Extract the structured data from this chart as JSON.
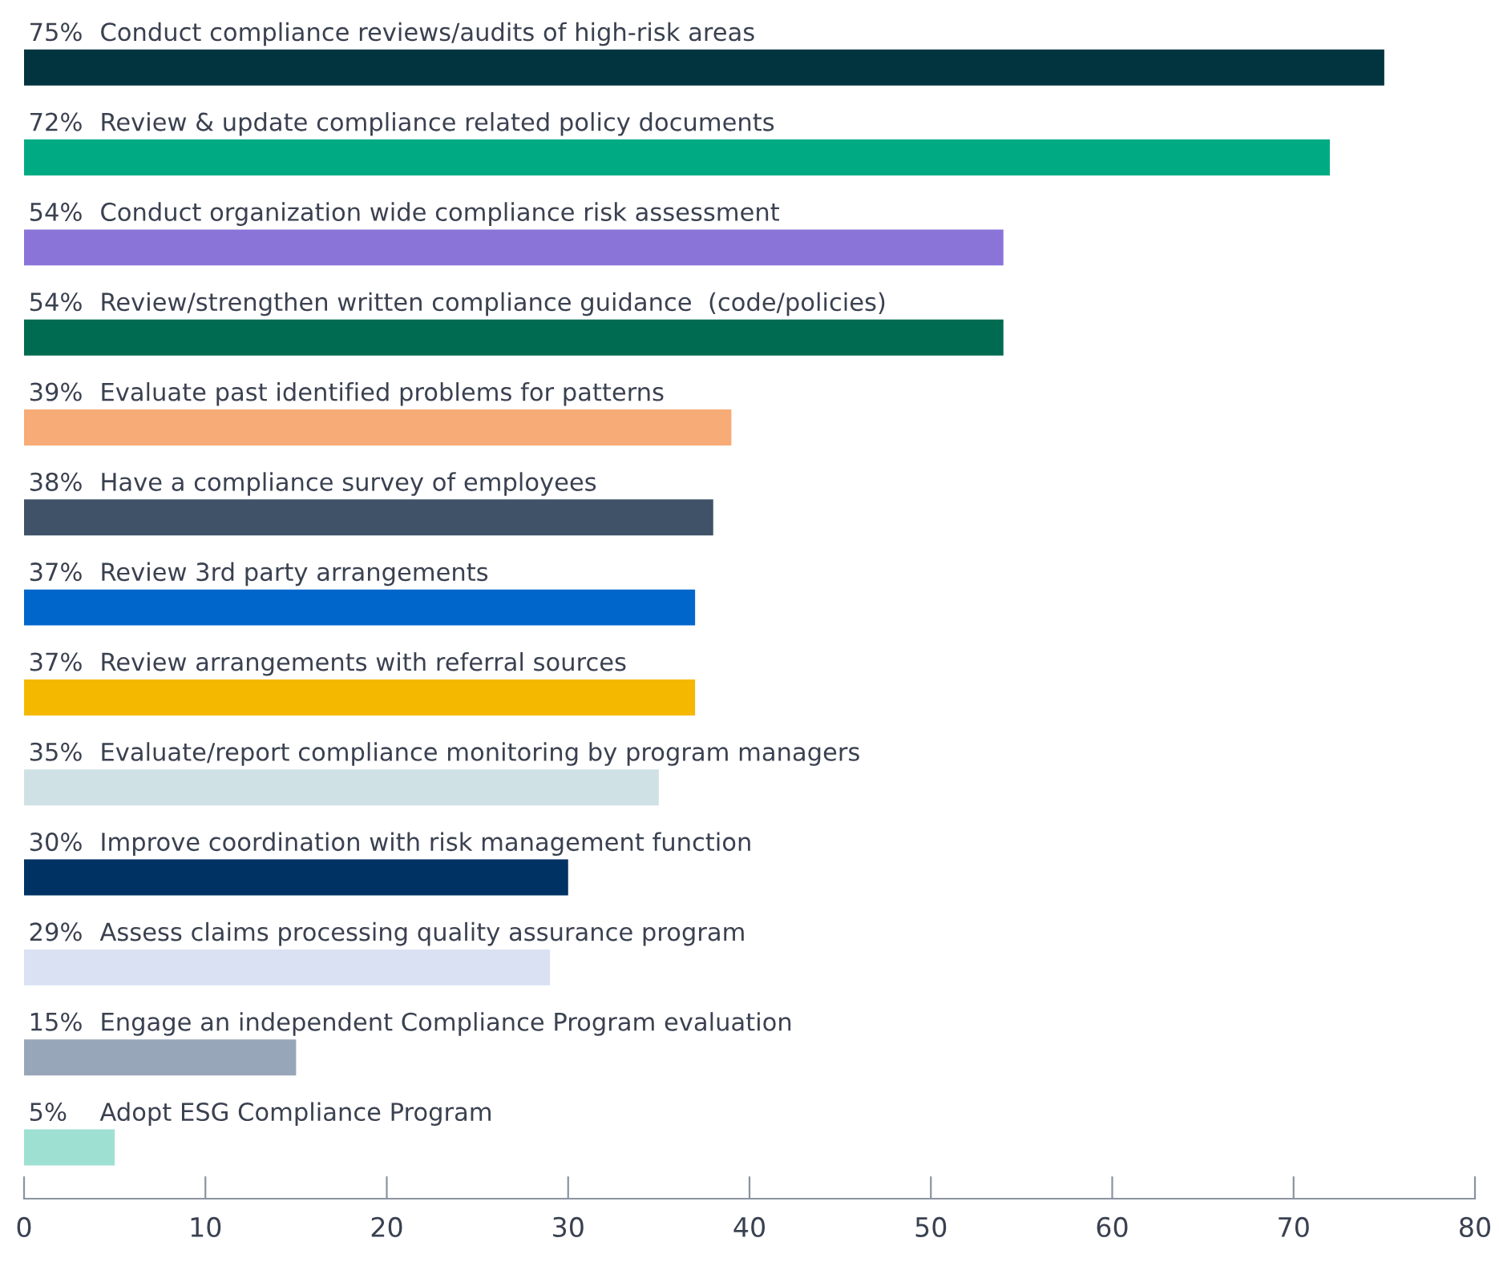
{
  "chart_data": {
    "type": "bar",
    "orientation": "horizontal",
    "categories": [
      "Conduct compliance reviews/audits of high-risk areas",
      "Review & update compliance related policy documents",
      "Conduct organization wide compliance risk assessment",
      "Review/strengthen written compliance guidance  (code/policies)",
      "Evaluate past identified problems for patterns",
      "Have a compliance survey of employees",
      "Review 3rd party arrangements",
      "Review arrangements with referral sources",
      "Evaluate/report compliance monitoring by program managers",
      "Improve coordination with risk management function",
      "Assess claims processing quality assurance program",
      "Engage an independent Compliance Program evaluation",
      "Adopt ESG Compliance Program"
    ],
    "values": [
      75,
      72,
      54,
      54,
      39,
      38,
      37,
      37,
      35,
      30,
      29,
      15,
      5
    ],
    "value_labels": [
      "75%",
      "72%",
      "54%",
      "54%",
      "39%",
      "38%",
      "37%",
      "37%",
      "35%",
      "30%",
      "29%",
      "15%",
      "5%"
    ],
    "colors": [
      "#01343f",
      "#00ab84",
      "#8a74d8",
      "#006b50",
      "#f7ab77",
      "#3f5268",
      "#0066cc",
      "#f5b800",
      "#d0e1e5",
      "#003263",
      "#d9e1f2",
      "#97a6b8",
      "#9ee0d2"
    ],
    "xlim": [
      0,
      80
    ],
    "xticks": [
      0,
      10,
      20,
      30,
      40,
      50,
      60,
      70,
      80
    ],
    "grid": false,
    "legend": false
  }
}
